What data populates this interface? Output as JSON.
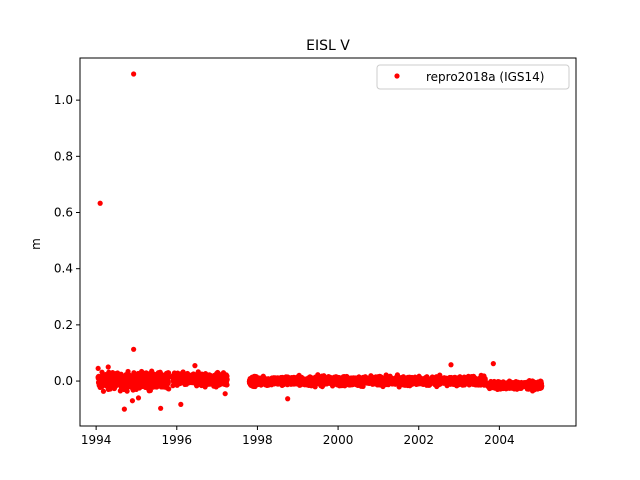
{
  "chart_data": {
    "type": "scatter",
    "title": "EISL V",
    "xlabel": "",
    "ylabel": "m",
    "xlim": [
      1993.6,
      2005.9
    ],
    "ylim": [
      -0.16,
      1.15
    ],
    "xticks": [
      1994,
      1996,
      1998,
      2000,
      2002,
      2004
    ],
    "xtick_labels": [
      "1994",
      "1996",
      "1998",
      "2000",
      "2002",
      "2004"
    ],
    "yticks": [
      0.0,
      0.2,
      0.4,
      0.6,
      0.8,
      1.0
    ],
    "ytick_labels": [
      "0.0",
      "0.2",
      "0.4",
      "0.6",
      "0.8",
      "1.0"
    ],
    "grid": false,
    "legend": {
      "position": "upper-right"
    },
    "series": [
      {
        "name": "repro2018a (IGS14)",
        "color": "#ff0000",
        "marker": "circle",
        "segments": [
          {
            "x_start": 1994.05,
            "x_end": 1995.8,
            "y_center": 0.0,
            "y_spread": 0.025
          },
          {
            "x_start": 1995.9,
            "x_end": 1997.25,
            "y_center": 0.005,
            "y_spread": 0.02
          },
          {
            "x_start": 1997.8,
            "x_end": 2003.65,
            "y_center": 0.0,
            "y_spread": 0.014
          },
          {
            "x_start": 2003.7,
            "x_end": 2005.05,
            "y_center": -0.015,
            "y_spread": 0.012
          }
        ],
        "outliers": [
          {
            "x": 1994.1,
            "y": 0.633
          },
          {
            "x": 1994.93,
            "y": 1.093
          },
          {
            "x": 1994.93,
            "y": 0.113
          },
          {
            "x": 1994.7,
            "y": -0.1
          },
          {
            "x": 1995.6,
            "y": -0.097
          },
          {
            "x": 1996.1,
            "y": -0.083
          },
          {
            "x": 1998.75,
            "y": -0.063
          },
          {
            "x": 1994.05,
            "y": 0.045
          },
          {
            "x": 1994.3,
            "y": 0.05
          },
          {
            "x": 1996.45,
            "y": 0.055
          },
          {
            "x": 2002.8,
            "y": 0.058
          },
          {
            "x": 2003.85,
            "y": 0.062
          },
          {
            "x": 1995.05,
            "y": -0.06
          },
          {
            "x": 1994.9,
            "y": -0.07
          },
          {
            "x": 1997.2,
            "y": -0.045
          }
        ]
      }
    ]
  }
}
